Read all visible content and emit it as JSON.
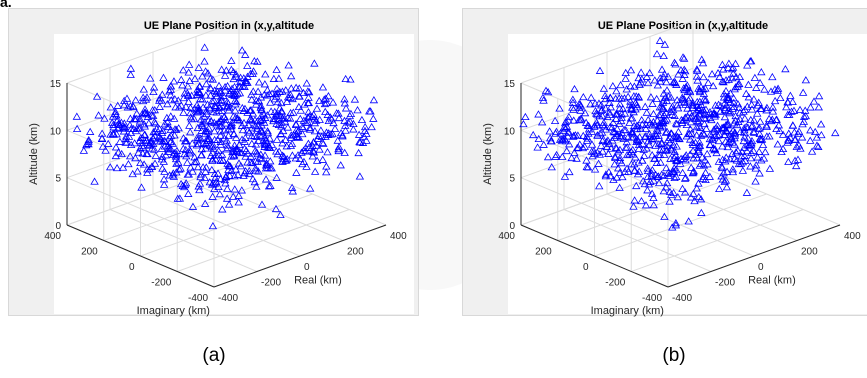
{
  "figure": {
    "corner_text": "a.",
    "captions": [
      "(a)",
      "(b)"
    ]
  },
  "chart_data": [
    {
      "type": "scatter",
      "title": "UE Plane Position in (x,y,altitude",
      "xlabel": "Real (km)",
      "ylabel": "Imaginary (km)",
      "zlabel": "Altitude (km)",
      "xlim": [
        -400,
        400
      ],
      "ylim": [
        -400,
        400
      ],
      "zlim": [
        0,
        15
      ],
      "xticks": [
        "-400",
        "-200",
        "0",
        "200",
        "400"
      ],
      "yticks": [
        "400",
        "200",
        "0",
        "-200",
        "-400"
      ],
      "zticks": [
        "0",
        "5",
        "10",
        "15"
      ],
      "marker": "triangle",
      "color": "#0000ff",
      "grid": true,
      "series": [
        {
          "n": 900,
          "z_mean": 10,
          "z_spread": 2.8
        }
      ]
    },
    {
      "type": "scatter",
      "title": "UE Plane Position in (x,y,altitude",
      "xlabel": "Real (km)",
      "ylabel": "Imaginary (km)",
      "zlabel": "Altitude (km)",
      "xlim": [
        -400,
        400
      ],
      "ylim": [
        -400,
        400
      ],
      "zlim": [
        0,
        15
      ],
      "xticks": [
        "-400",
        "-200",
        "0",
        "200",
        "400"
      ],
      "yticks": [
        "400",
        "200",
        "0",
        "-200",
        "-400"
      ],
      "zticks": [
        "0",
        "5",
        "10",
        "15"
      ],
      "marker": "triangle",
      "color": "#0000ff",
      "grid": true,
      "series": [
        {
          "n": 900,
          "z_mean": 10,
          "z_spread": 2.8
        }
      ]
    }
  ]
}
